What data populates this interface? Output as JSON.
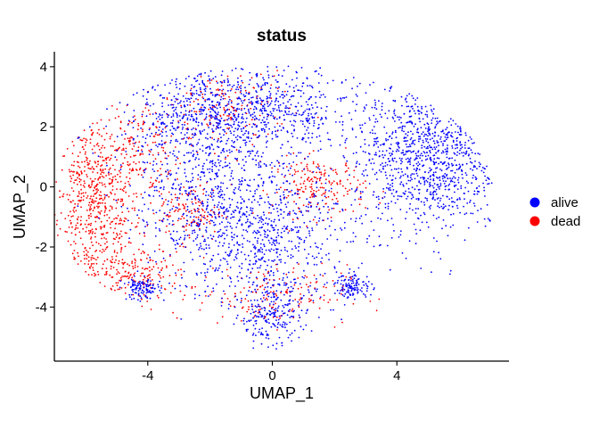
{
  "chart_data": {
    "type": "scatter",
    "title": "status",
    "xlabel": "UMAP_1",
    "ylabel": "UMAP_2",
    "xlim": [
      -7,
      7.6
    ],
    "ylim": [
      -5.8,
      4.5
    ],
    "xticks": [
      -4,
      0,
      4
    ],
    "yticks": [
      -4,
      -2,
      0,
      2,
      4
    ],
    "grid": false,
    "legend_position": "right",
    "series": [
      {
        "name": "alive",
        "color": "#0000ff",
        "clusters": [
          {
            "center": [
              5.0,
              1.0
            ],
            "spread": [
              1.15,
              1.25
            ],
            "weight": 0.3
          },
          {
            "center": [
              -1.0,
              2.5
            ],
            "spread": [
              1.9,
              0.75
            ],
            "weight": 0.25
          },
          {
            "center": [
              -0.5,
              -1.5
            ],
            "spread": [
              1.5,
              1.2
            ],
            "weight": 0.22
          },
          {
            "center": [
              0.0,
              -4.3
            ],
            "spread": [
              0.55,
              0.6
            ],
            "weight": 0.06
          },
          {
            "center": [
              -4.2,
              -3.4
            ],
            "spread": [
              0.3,
              0.18
            ],
            "weight": 0.03
          },
          {
            "center": [
              2.6,
              -3.3
            ],
            "spread": [
              0.3,
              0.2
            ],
            "weight": 0.03
          },
          {
            "center": [
              -2.5,
              0.5
            ],
            "spread": [
              1.2,
              1.2
            ],
            "weight": 0.11
          }
        ]
      },
      {
        "name": "dead",
        "color": "#ff0000",
        "clusters": [
          {
            "center": [
              -5.7,
              -0.7
            ],
            "spread": [
              0.75,
              1.5
            ],
            "weight": 0.4
          },
          {
            "center": [
              -4.5,
              1.3
            ],
            "spread": [
              0.8,
              0.8
            ],
            "weight": 0.1
          },
          {
            "center": [
              -4.3,
              -2.9
            ],
            "spread": [
              0.8,
              0.45
            ],
            "weight": 0.1
          },
          {
            "center": [
              1.5,
              0.0
            ],
            "spread": [
              0.75,
              0.5
            ],
            "weight": 0.12
          },
          {
            "center": [
              -1.5,
              2.6
            ],
            "spread": [
              1.0,
              0.7
            ],
            "weight": 0.1
          },
          {
            "center": [
              0.0,
              -3.6
            ],
            "spread": [
              1.2,
              0.5
            ],
            "weight": 0.1
          },
          {
            "center": [
              -2.6,
              -0.8
            ],
            "spread": [
              0.5,
              0.5
            ],
            "weight": 0.08
          }
        ]
      }
    ]
  }
}
